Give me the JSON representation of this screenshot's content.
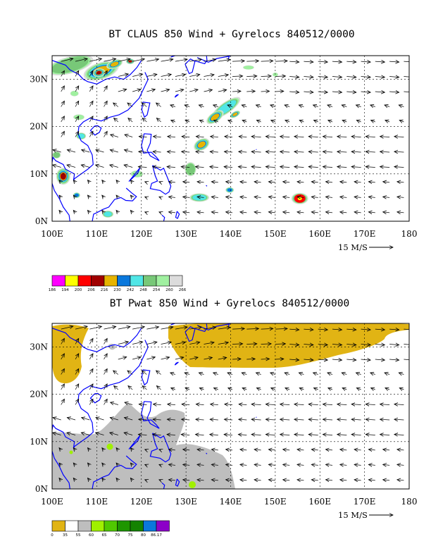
{
  "chart_data": [
    {
      "type": "heatmap",
      "title": "BT CLAUS 850 Wind + Gyrelocs 840512/0000",
      "field": "cloud brightness temperature (CLAUS) with 850 hPa wind vectors",
      "xlim": [
        100,
        180
      ],
      "ylim": [
        0,
        35
      ],
      "x_tick_labels": [
        "100E",
        "110E",
        "120E",
        "130E",
        "140E",
        "150E",
        "160E",
        "170E",
        "180"
      ],
      "y_tick_labels": [
        "0N",
        "10N",
        "20N",
        "30N"
      ],
      "grid": "dotted",
      "reference_vector_label": "15 M/S",
      "colorbar": {
        "levels": [
          "186",
          "194",
          "200",
          "206",
          "216",
          "230",
          "242",
          "248",
          "254",
          "260",
          "266"
        ],
        "colors": [
          "#ff00ff",
          "#ffff00",
          "#ff0000",
          "#a00000",
          "#e6b400",
          "#0a78dc",
          "#50e6e6",
          "#78c878",
          "#a0f0a0",
          "#dcdcdc"
        ]
      },
      "features": [
        {
          "lon": 110.5,
          "lat": 31.5,
          "level": "206"
        },
        {
          "lon": 114,
          "lat": 33,
          "level": "216"
        },
        {
          "lon": 136.5,
          "lat": 22,
          "level": "216"
        },
        {
          "lon": 133.5,
          "lat": 16,
          "level": "216"
        },
        {
          "lon": 155.5,
          "lat": 4.8,
          "level": "194"
        },
        {
          "lon": 103,
          "lat": 9.5,
          "level": "206"
        }
      ]
    },
    {
      "type": "heatmap",
      "title": "BT Pwat 850 Wind + Gyrelocs 840512/0000",
      "field": "precipitable water with 850 hPa wind vectors",
      "xlim": [
        100,
        180
      ],
      "ylim": [
        0,
        35
      ],
      "x_tick_labels": [
        "100E",
        "110E",
        "120E",
        "130E",
        "140E",
        "150E",
        "160E",
        "170E",
        "180"
      ],
      "y_tick_labels": [
        "0N",
        "10N",
        "20N",
        "30N"
      ],
      "grid": "dotted",
      "reference_vector_label": "15 M/S",
      "colorbar": {
        "levels": [
          "0",
          "35",
          "55",
          "60",
          "65",
          "70",
          "75",
          "80",
          "86.17"
        ],
        "colors": [
          "#e1b414",
          "#ffffff",
          "#bebebe",
          "#a0f000",
          "#50c800",
          "#1e9600",
          "#148200",
          "#0a78dc",
          "#8c00c8"
        ]
      }
    }
  ]
}
